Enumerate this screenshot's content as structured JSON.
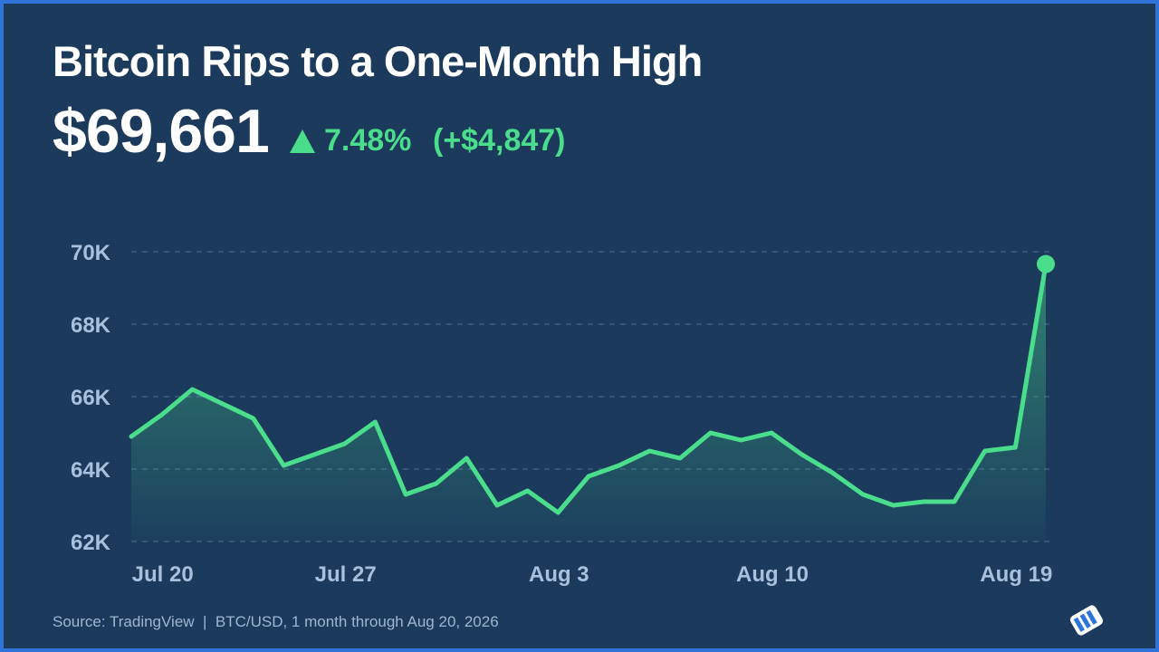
{
  "chart_data": {
    "type": "area",
    "title": "Bitcoin Rips to a One-Month High",
    "price": "$69,661",
    "change_pct": "7.48%",
    "change_abs": "(+$4,847)",
    "footer": "Source: TradingView  |  BTC/USD, 1 month through Aug 20, 2026",
    "categories": [
      null,
      "Jul 20",
      null,
      null,
      null,
      null,
      null,
      "Jul 27",
      null,
      null,
      null,
      null,
      null,
      null,
      "Aug 3",
      null,
      null,
      null,
      null,
      null,
      null,
      "Aug 10",
      null,
      null,
      null,
      null,
      null,
      null,
      null,
      "Aug 19",
      null
    ],
    "series": [
      {
        "name": "BTC/USD",
        "color": "#4ade8c",
        "values": [
          64900,
          65500,
          66200,
          65800,
          65400,
          64100,
          64400,
          64700,
          65300,
          63300,
          63600,
          64300,
          63000,
          63400,
          62800,
          63800,
          64100,
          64500,
          64300,
          65000,
          64800,
          65000,
          64400,
          63900,
          63300,
          63000,
          63100,
          63100,
          64500,
          64600,
          69661
        ]
      }
    ],
    "ylim": [
      62000,
      70000
    ],
    "yticks": [
      {
        "value": 62000,
        "label": "62K"
      },
      {
        "value": 64000,
        "label": "64K"
      },
      {
        "value": 66000,
        "label": "66K"
      },
      {
        "value": 68000,
        "label": "68K"
      },
      {
        "value": 70000,
        "label": "70K"
      }
    ],
    "grid": true
  }
}
